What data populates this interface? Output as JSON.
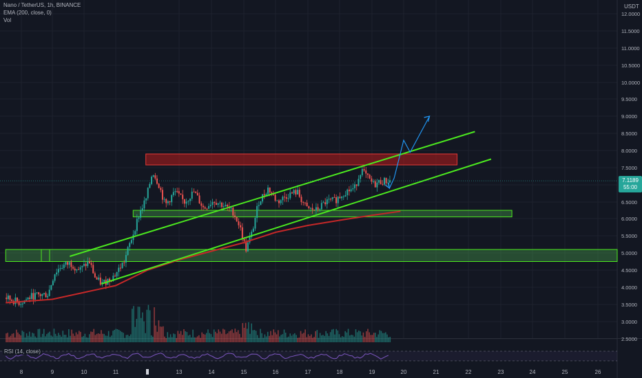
{
  "header": {
    "symbol_line": "Nano / TetherUS, 1h, BINANCE",
    "ema_line": "EMA (200, close, 0)",
    "vol_line": "Vol",
    "currency": "USDT"
  },
  "rsi": {
    "label": "RSI (14, close)"
  },
  "price_tag": {
    "price": "7.1189",
    "countdown": "55:00"
  },
  "colors": {
    "background": "#131722",
    "bull": "#26a69a",
    "bear": "#ef5350",
    "ema": "#c62828",
    "channel": "#4cea1f",
    "projection": "#2196f3",
    "rsi": "#7e57c2",
    "price_tag": "#26a69a"
  },
  "chart_data": {
    "type": "candlestick",
    "x_ticks": [
      "8",
      "9",
      "10",
      "11",
      "13",
      "14",
      "15",
      "16",
      "17",
      "18",
      "19",
      "20",
      "21",
      "22",
      "23",
      "24",
      "25",
      "26"
    ],
    "y_ticks": [
      "2.5000",
      "3.0000",
      "3.5000",
      "4.0000",
      "4.5000",
      "5.0000",
      "5.5000",
      "6.0000",
      "6.5000",
      "7.0000",
      "7.5000",
      "8.0000",
      "8.5000",
      "9.0000",
      "9.5000",
      "10.0000",
      "10.5000",
      "11.0000",
      "11.5000",
      "12.0000"
    ],
    "ylim": [
      2.4,
      12.3
    ],
    "xlim": [
      7.5,
      26.6
    ],
    "price_path": [
      {
        "t": 7.5,
        "p": 3.7
      },
      {
        "t": 8.0,
        "p": 3.55
      },
      {
        "t": 8.4,
        "p": 3.75
      },
      {
        "t": 8.9,
        "p": 3.8
      },
      {
        "t": 9.1,
        "p": 4.4
      },
      {
        "t": 9.3,
        "p": 4.6
      },
      {
        "t": 9.6,
        "p": 4.7
      },
      {
        "t": 9.9,
        "p": 4.5
      },
      {
        "t": 10.2,
        "p": 4.75
      },
      {
        "t": 10.4,
        "p": 4.25
      },
      {
        "t": 10.6,
        "p": 4.1
      },
      {
        "t": 11.0,
        "p": 4.35
      },
      {
        "t": 11.3,
        "p": 4.75
      },
      {
        "t": 11.6,
        "p": 5.6
      },
      {
        "t": 11.8,
        "p": 6.2
      },
      {
        "t": 12.0,
        "p": 6.6
      },
      {
        "t": 12.2,
        "p": 7.4
      },
      {
        "t": 12.4,
        "p": 7.0
      },
      {
        "t": 12.6,
        "p": 6.4
      },
      {
        "t": 12.9,
        "p": 6.8
      },
      {
        "t": 13.2,
        "p": 6.5
      },
      {
        "t": 13.5,
        "p": 6.8
      },
      {
        "t": 13.8,
        "p": 6.3
      },
      {
        "t": 14.1,
        "p": 6.55
      },
      {
        "t": 14.4,
        "p": 6.4
      },
      {
        "t": 14.7,
        "p": 6.2
      },
      {
        "t": 14.9,
        "p": 5.8
      },
      {
        "t": 15.1,
        "p": 5.1
      },
      {
        "t": 15.3,
        "p": 5.6
      },
      {
        "t": 15.5,
        "p": 6.5
      },
      {
        "t": 15.8,
        "p": 6.9
      },
      {
        "t": 16.1,
        "p": 6.5
      },
      {
        "t": 16.4,
        "p": 6.7
      },
      {
        "t": 16.7,
        "p": 6.8
      },
      {
        "t": 17.0,
        "p": 6.3
      },
      {
        "t": 17.3,
        "p": 6.25
      },
      {
        "t": 17.6,
        "p": 6.5
      },
      {
        "t": 17.9,
        "p": 6.55
      },
      {
        "t": 18.2,
        "p": 6.8
      },
      {
        "t": 18.5,
        "p": 6.9
      },
      {
        "t": 18.7,
        "p": 7.45
      },
      {
        "t": 18.9,
        "p": 7.2
      },
      {
        "t": 19.1,
        "p": 7.0
      },
      {
        "t": 19.3,
        "p": 7.1
      },
      {
        "t": 19.6,
        "p": 7.12
      }
    ],
    "ema200": [
      {
        "t": 7.5,
        "p": 3.55
      },
      {
        "t": 9.0,
        "p": 3.65
      },
      {
        "t": 10.0,
        "p": 3.85
      },
      {
        "t": 11.0,
        "p": 4.05
      },
      {
        "t": 12.0,
        "p": 4.5
      },
      {
        "t": 13.0,
        "p": 4.8
      },
      {
        "t": 14.0,
        "p": 5.05
      },
      {
        "t": 15.0,
        "p": 5.3
      },
      {
        "t": 16.0,
        "p": 5.6
      },
      {
        "t": 17.0,
        "p": 5.8
      },
      {
        "t": 18.0,
        "p": 5.95
      },
      {
        "t": 19.0,
        "p": 6.1
      },
      {
        "t": 19.9,
        "p": 6.22
      }
    ],
    "channel_lines": [
      {
        "t1": 9.55,
        "p1": 4.9,
        "t2": 22.2,
        "p2": 8.55
      },
      {
        "t1": 10.55,
        "p1": 4.1,
        "t2": 22.7,
        "p2": 7.75
      }
    ],
    "zones": [
      {
        "kind": "resistance",
        "t1": 11.95,
        "t2": 21.65,
        "p_low": 7.58,
        "p_high": 7.9
      },
      {
        "kind": "support",
        "t1": 11.55,
        "t2": 23.35,
        "p_low": 6.05,
        "p_high": 6.25
      },
      {
        "kind": "support",
        "t1": 7.5,
        "t2": 26.6,
        "p_low": 4.75,
        "p_high": 5.1
      }
    ],
    "projection": [
      {
        "t": 19.55,
        "p": 6.9
      },
      {
        "t": 19.7,
        "p": 7.2
      },
      {
        "t": 20.0,
        "p": 8.3
      },
      {
        "t": 20.2,
        "p": 7.95
      },
      {
        "t": 20.8,
        "p": 9.0
      }
    ],
    "last_price": 7.1189
  }
}
